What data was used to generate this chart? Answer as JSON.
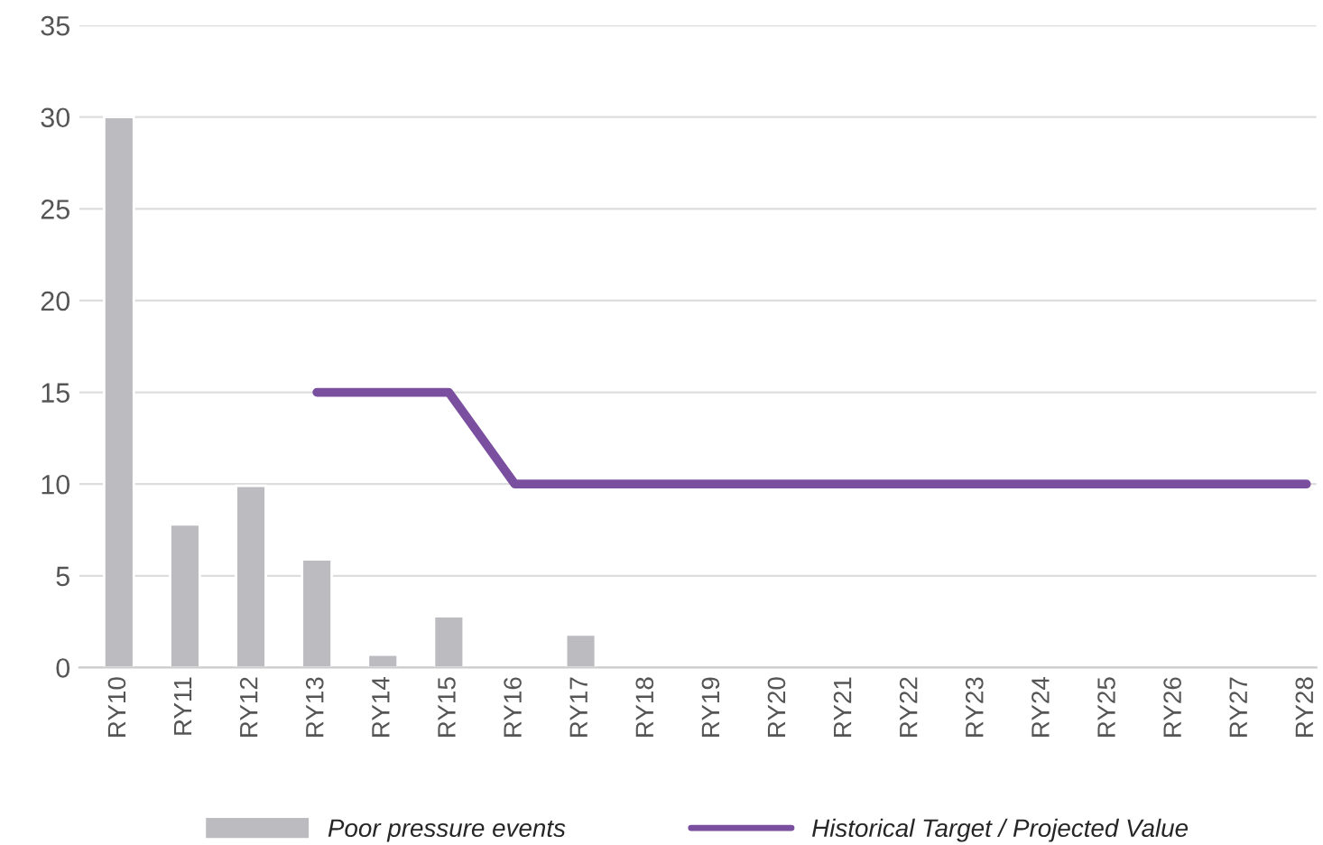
{
  "chart_data": {
    "type": "bar",
    "categories": [
      "RY10",
      "RY11",
      "RY12",
      "RY13",
      "RY14",
      "RY15",
      "RY16",
      "RY17",
      "RY18",
      "RY19",
      "RY20",
      "RY21",
      "RY22",
      "RY23",
      "RY24",
      "RY25",
      "RY26",
      "RY27",
      "RY28"
    ],
    "series": [
      {
        "name": "Poor pressure events",
        "color": "#bcbcc0",
        "values": [
          30,
          7.8,
          9.9,
          5.9,
          0.7,
          2.8,
          null,
          1.8,
          null,
          null,
          null,
          null,
          null,
          null,
          null,
          null,
          null,
          null,
          null
        ]
      },
      {
        "name": "Historical Target / Projected Value",
        "type": "line",
        "color": "#7b4fa0",
        "values": [
          null,
          null,
          null,
          15,
          15,
          15,
          10,
          10,
          10,
          10,
          10,
          10,
          10,
          10,
          10,
          10,
          10,
          10,
          10
        ]
      }
    ],
    "ylim": [
      0,
      35
    ],
    "yticks": [
      0,
      5,
      10,
      15,
      20,
      25,
      30,
      35
    ],
    "grid": "y",
    "legend": "bottom",
    "marker": "none",
    "line_style": "solid"
  }
}
